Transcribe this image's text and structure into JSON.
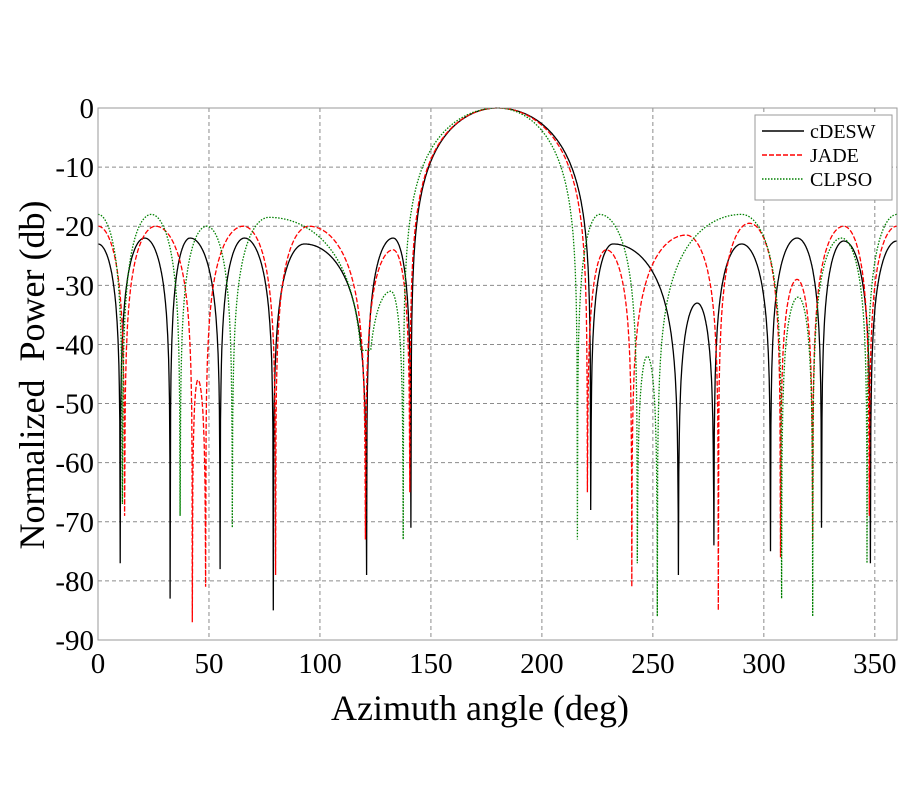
{
  "chart_data": {
    "type": "line",
    "title": "",
    "xlabel": "Azimuth angle (deg)",
    "ylabel": "Normalized  Power (db)",
    "xlim": [
      0,
      360
    ],
    "ylim": [
      -90,
      0
    ],
    "xticks": [
      "0",
      "50",
      "100",
      "150",
      "200",
      "250",
      "300",
      "350"
    ],
    "yticks": [
      "0",
      "-10",
      "-20",
      "-30",
      "-40",
      "-50",
      "-60",
      "-70",
      "-80",
      "-90"
    ],
    "grid": true,
    "legend_position": "top-right",
    "series": [
      {
        "name": "cDESW",
        "color": "#000000",
        "style": "solid",
        "extrema": [
          [
            0,
            -23
          ],
          [
            10,
            -77
          ],
          [
            21,
            -22
          ],
          [
            32.5,
            -83
          ],
          [
            41.5,
            -22
          ],
          [
            55,
            -78
          ],
          [
            66,
            -22
          ],
          [
            79,
            -85
          ],
          [
            93,
            -23
          ],
          [
            121,
            -79
          ],
          [
            133,
            -22
          ],
          [
            141,
            -71
          ],
          [
            180,
            0
          ],
          [
            222,
            -68
          ],
          [
            232,
            -23
          ],
          [
            261.5,
            -79
          ],
          [
            270,
            -33
          ],
          [
            277.5,
            -74
          ],
          [
            290,
            -23
          ],
          [
            303,
            -75
          ],
          [
            315,
            -22
          ],
          [
            326,
            -71
          ],
          [
            336,
            -22.5
          ],
          [
            348,
            -77
          ],
          [
            360,
            -22.5
          ]
        ]
      },
      {
        "name": "JADE",
        "color": "#ff0000",
        "style": "dashed",
        "extrema": [
          [
            0,
            -20
          ],
          [
            12,
            -69
          ],
          [
            26,
            -20
          ],
          [
            42.5,
            -87
          ],
          [
            45,
            -46
          ],
          [
            48.5,
            -81
          ],
          [
            65.5,
            -20
          ],
          [
            80,
            -79
          ],
          [
            95,
            -20
          ],
          [
            120.5,
            -73
          ],
          [
            133,
            -24
          ],
          [
            140.5,
            -65
          ],
          [
            180,
            0
          ],
          [
            220.5,
            -65
          ],
          [
            229,
            -24
          ],
          [
            240.5,
            -81
          ],
          [
            265,
            -21.5
          ],
          [
            279.5,
            -85
          ],
          [
            293.5,
            -19.5
          ],
          [
            307.5,
            -76
          ],
          [
            315,
            -29
          ],
          [
            322,
            -73
          ],
          [
            336,
            -20
          ],
          [
            347.5,
            -69
          ],
          [
            360,
            -20
          ]
        ]
      },
      {
        "name": "CLPSO",
        "color": "#008000",
        "style": "dotted",
        "extrema": [
          [
            0,
            -18
          ],
          [
            11,
            -67
          ],
          [
            24,
            -18
          ],
          [
            37,
            -69
          ],
          [
            49,
            -20
          ],
          [
            60.5,
            -71
          ],
          [
            77,
            -18.5
          ],
          [
            120.5,
            -41
          ],
          [
            132,
            -31
          ],
          [
            137.5,
            -73
          ],
          [
            180,
            0
          ],
          [
            216,
            -73
          ],
          [
            226,
            -18
          ],
          [
            243,
            -77
          ],
          [
            247.5,
            -42
          ],
          [
            252,
            -86
          ],
          [
            290,
            -18
          ],
          [
            308,
            -83
          ],
          [
            315.5,
            -32
          ],
          [
            322,
            -86
          ],
          [
            335,
            -22
          ],
          [
            346.5,
            -77
          ],
          [
            360,
            -18
          ]
        ]
      }
    ]
  }
}
